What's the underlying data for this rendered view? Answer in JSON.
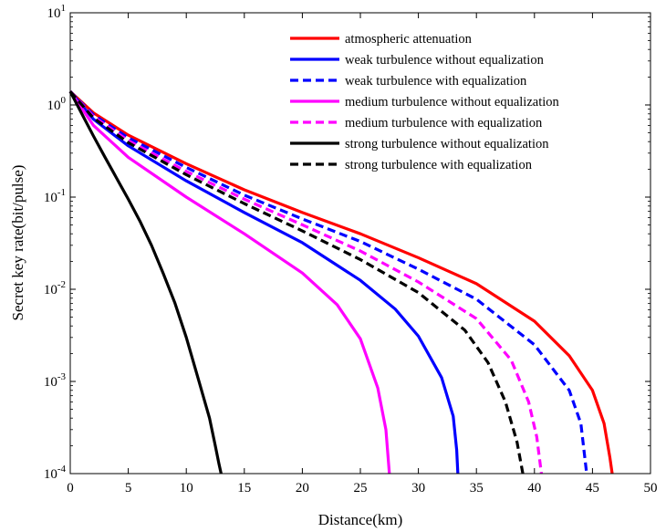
{
  "chart_data": {
    "type": "line",
    "xlabel": "Distance(km)",
    "ylabel": "Secret key rate(bit/pulse)",
    "xlim": [
      0,
      50
    ],
    "ylim": [
      0.0001,
      10
    ],
    "yscale": "log",
    "grid": false,
    "legend_position": "top-right",
    "x_ticks": [
      "0",
      "5",
      "10",
      "15",
      "20",
      "25",
      "30",
      "35",
      "40",
      "45",
      "50"
    ],
    "y_ticks": [
      {
        "base": "10",
        "exp": "1",
        "value": 10
      },
      {
        "base": "10",
        "exp": "0",
        "value": 1
      },
      {
        "base": "10",
        "exp": "-1",
        "value": 0.1
      },
      {
        "base": "10",
        "exp": "-2",
        "value": 0.01
      },
      {
        "base": "10",
        "exp": "-3",
        "value": 0.001
      },
      {
        "base": "10",
        "exp": "-4",
        "value": 0.0001
      }
    ],
    "series": [
      {
        "name": "atmospheric attenuation",
        "color": "#ff0000",
        "dash": "solid",
        "x": [
          0,
          2,
          5,
          10,
          15,
          20,
          25,
          30,
          35,
          40,
          43,
          45,
          46,
          46.5,
          46.7
        ],
        "y": [
          1.4,
          0.82,
          0.47,
          0.23,
          0.12,
          0.068,
          0.04,
          0.022,
          0.0115,
          0.0045,
          0.0019,
          0.0008,
          0.00035,
          0.00015,
          0.0001
        ]
      },
      {
        "name": "weak turbulence without equalization",
        "color": "#0000ff",
        "dash": "solid",
        "x": [
          0,
          2,
          5,
          10,
          15,
          20,
          25,
          28,
          30,
          32,
          33,
          33.3,
          33.4
        ],
        "y": [
          1.4,
          0.7,
          0.36,
          0.15,
          0.068,
          0.032,
          0.0125,
          0.0061,
          0.0031,
          0.0011,
          0.00042,
          0.00018,
          0.0001
        ]
      },
      {
        "name": "weak turbulence with equalization",
        "color": "#0000ff",
        "dash": "dashed",
        "x": [
          0,
          2,
          5,
          10,
          15,
          20,
          25,
          30,
          35,
          40,
          43,
          44,
          44.5
        ],
        "y": [
          1.4,
          0.78,
          0.44,
          0.21,
          0.105,
          0.058,
          0.033,
          0.0165,
          0.0078,
          0.0025,
          0.0008,
          0.00035,
          0.0001
        ]
      },
      {
        "name": "medium turbulence without equalization",
        "color": "#ff00ff",
        "dash": "solid",
        "x": [
          0,
          2,
          5,
          10,
          15,
          20,
          23,
          25,
          26.5,
          27.2,
          27.5
        ],
        "y": [
          1.4,
          0.6,
          0.27,
          0.1,
          0.04,
          0.015,
          0.0068,
          0.0029,
          0.00085,
          0.0003,
          0.0001
        ]
      },
      {
        "name": "medium turbulence with equalization",
        "color": "#ff00ff",
        "dash": "dashed",
        "x": [
          0,
          2,
          5,
          10,
          15,
          20,
          25,
          30,
          35,
          38,
          39.5,
          40.2,
          40.6
        ],
        "y": [
          1.4,
          0.75,
          0.41,
          0.19,
          0.095,
          0.05,
          0.026,
          0.012,
          0.0048,
          0.0017,
          0.0006,
          0.00025,
          0.0001
        ]
      },
      {
        "name": "strong turbulence without equalization",
        "color": "#000000",
        "dash": "solid",
        "x": [
          0,
          1,
          2,
          3,
          4,
          5,
          6,
          7,
          8,
          9,
          10,
          11,
          12,
          12.5,
          12.8,
          13
        ],
        "y": [
          1.4,
          0.8,
          0.46,
          0.27,
          0.16,
          0.095,
          0.055,
          0.03,
          0.015,
          0.0072,
          0.003,
          0.0011,
          0.0004,
          0.0002,
          0.00013,
          0.0001
        ]
      },
      {
        "name": "strong turbulence with equalization",
        "color": "#000000",
        "dash": "dashed",
        "x": [
          0,
          2,
          5,
          10,
          15,
          20,
          25,
          30,
          34,
          36,
          37.5,
          38.5,
          39
        ],
        "y": [
          1.4,
          0.72,
          0.39,
          0.175,
          0.085,
          0.043,
          0.021,
          0.0092,
          0.0036,
          0.0016,
          0.0006,
          0.00022,
          0.0001
        ]
      }
    ]
  }
}
